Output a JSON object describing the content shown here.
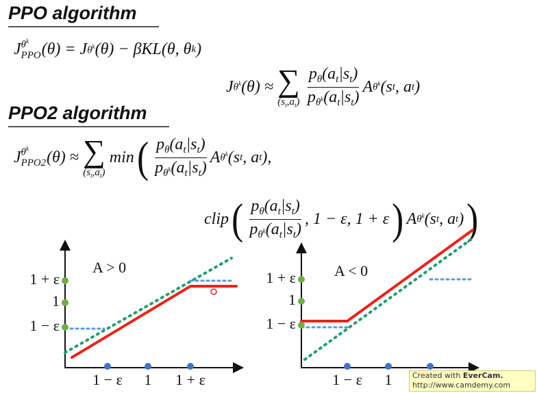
{
  "ppo": {
    "title": "PPO algorithm",
    "objective": [
      "J",
      {
        "supsub": {
          "sup": [
            "θ",
            {
              "sup": [
                "k"
              ]
            }
          ],
          "sub": [
            "PPO"
          ]
        }
      },
      "(θ) = J",
      {
        "sup": [
          "θ",
          {
            "sup": [
              "k"
            ]
          }
        ]
      },
      "(θ) − βKL(θ, θ",
      {
        "sup": [
          "k"
        ]
      },
      ")"
    ],
    "surrogate": [
      "J",
      {
        "sup": [
          "θ",
          {
            "sup": [
              "k"
            ]
          }
        ]
      },
      "(θ) ≈",
      {
        "sum": "∑",
        "under": [
          "(s",
          {
            "sub": [
              "t"
            ]
          },
          ",a",
          {
            "sub": [
              "t"
            ]
          },
          ")"
        ]
      },
      {
        "frac": {
          "num": [
            "p",
            {
              "sub": [
                "θ"
              ]
            },
            "(a",
            {
              "sub": [
                "t"
              ]
            },
            "|s",
            {
              "sub": [
                "t"
              ]
            },
            ")"
          ],
          "den": [
            "p",
            {
              "sub": [
                "θ",
                {
                  "sup": [
                    "k"
                  ]
                }
              ]
            },
            "(a",
            {
              "sub": [
                "t"
              ]
            },
            "|s",
            {
              "sub": [
                "t"
              ]
            },
            ")"
          ]
        }
      },
      "A",
      {
        "sup": [
          "θ",
          {
            "sup": [
              "k"
            ]
          }
        ]
      },
      "(s",
      {
        "sub": [
          "t"
        ]
      },
      ", a",
      {
        "sub": [
          "t"
        ]
      },
      ")"
    ]
  },
  "ppo2": {
    "title": "PPO2 algorithm",
    "line1": [
      "J",
      {
        "supsub": {
          "sup": [
            "θ",
            {
              "sup": [
                "k"
              ]
            }
          ],
          "sub": [
            "PPO2"
          ]
        }
      },
      "(θ) ≈",
      {
        "sum": "∑",
        "under": [
          "(s",
          {
            "sub": [
              "t"
            ]
          },
          ",a",
          {
            "sub": [
              "t"
            ]
          },
          ")"
        ]
      },
      "min",
      {
        "big": "("
      },
      {
        "frac": {
          "num": [
            "p",
            {
              "sub": [
                "θ"
              ]
            },
            "(a",
            {
              "sub": [
                "t"
              ]
            },
            "|s",
            {
              "sub": [
                "t"
              ]
            },
            ")"
          ],
          "den": [
            "p",
            {
              "sub": [
                "θ",
                {
                  "sup": [
                    "k"
                  ]
                }
              ]
            },
            "(a",
            {
              "sub": [
                "t"
              ]
            },
            "|s",
            {
              "sub": [
                "t"
              ]
            },
            ")"
          ]
        }
      },
      "A",
      {
        "sup": [
          "θ",
          {
            "sup": [
              "k"
            ]
          }
        ]
      },
      "(s",
      {
        "sub": [
          "t"
        ]
      },
      ", a",
      {
        "sub": [
          "t"
        ]
      },
      "),"
    ],
    "line2": [
      "clip",
      {
        "big": "("
      },
      {
        "frac": {
          "num": [
            "p",
            {
              "sub": [
                "θ"
              ]
            },
            "(a",
            {
              "sub": [
                "t"
              ]
            },
            "|s",
            {
              "sub": [
                "t"
              ]
            },
            ")"
          ],
          "den": [
            "p",
            {
              "sub": [
                "θ",
                {
                  "sup": [
                    "k"
                  ]
                }
              ]
            },
            "(a",
            {
              "sub": [
                "t"
              ]
            },
            "|s",
            {
              "sub": [
                "t"
              ]
            },
            ")"
          ]
        }
      },
      ", 1 − ε, 1 + ε",
      {
        "big": ")"
      },
      "A",
      {
        "sup": [
          "θ",
          {
            "sup": [
              "k"
            ]
          }
        ]
      },
      "(s",
      {
        "sub": [
          "t"
        ]
      },
      ", a",
      {
        "sub": [
          "t"
        ]
      },
      ")",
      {
        "big": ")"
      }
    ]
  },
  "charts": [
    {
      "label": "A > 0",
      "yticks": [
        "1 + ε",
        "1",
        "1 − ε"
      ],
      "xticks": [
        "1 − ε",
        "1",
        "1 + ε"
      ]
    },
    {
      "label": "A < 0",
      "yticks": [
        "1 + ε",
        "1",
        "1 − ε"
      ],
      "xticks": [
        "1 − ε",
        "1"
      ]
    }
  ],
  "watermark": {
    "prefix": "Created with",
    "brand": "EverCam.",
    "url": "http://www.camdemy.com"
  }
}
